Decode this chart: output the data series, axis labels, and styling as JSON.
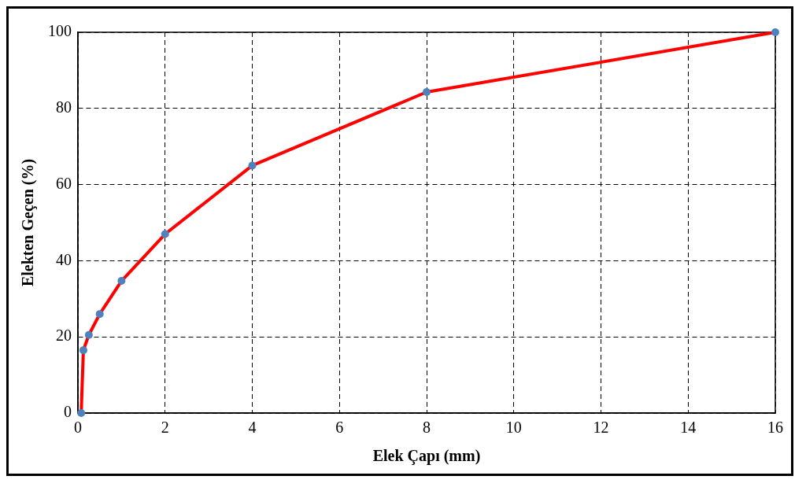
{
  "chart_data": {
    "type": "line",
    "xlabel": "Elek Çapı (mm)",
    "ylabel": "Elekten Geçen (%)",
    "x": [
      0.075,
      0.125,
      0.25,
      0.5,
      1,
      2,
      4,
      8,
      16
    ],
    "series": [
      {
        "color": "#ff0000",
        "values": [
          0,
          16.5,
          20.5,
          26,
          34.7,
          47,
          65,
          84.3,
          100
        ]
      }
    ],
    "xlim": [
      0,
      16
    ],
    "xticks": [
      0,
      2,
      4,
      6,
      8,
      10,
      12,
      14,
      16
    ],
    "ylim": [
      0,
      100
    ],
    "yticks": [
      0,
      20,
      40,
      60,
      80,
      100
    ],
    "grid": true,
    "line_style": "solid",
    "marker": "circle",
    "legend": false
  }
}
